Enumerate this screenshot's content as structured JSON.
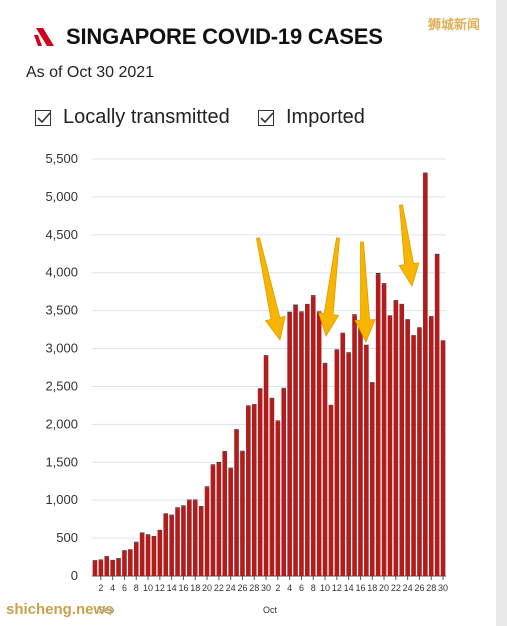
{
  "header": {
    "title": "SINGAPORE COVID-19 CASES",
    "subtitle": "As of Oct 30 2021"
  },
  "legend": [
    {
      "label": "Locally transmitted",
      "checked": true
    },
    {
      "label": "Imported",
      "checked": true
    }
  ],
  "watermarks": {
    "top": "狮城新闻",
    "bottom": "shicheng.news"
  },
  "colors": {
    "local": "#b11c1c",
    "imported": "#3a3a3a",
    "arrow": "#f7b500",
    "logo": "#d0021b"
  },
  "chart_data": {
    "type": "bar",
    "stacked": true,
    "title": "SINGAPORE COVID-19 CASES",
    "xlabel": "",
    "ylabel": "",
    "ylim": [
      0,
      5500
    ],
    "yticks": [
      0,
      500,
      1000,
      1500,
      2000,
      2500,
      3000,
      3500,
      4000,
      4500,
      5000,
      5500
    ],
    "ytick_labels": [
      "0",
      "500",
      "1,000",
      "1,500",
      "2,000",
      "2,500",
      "3,000",
      "3,500",
      "4,000",
      "4,500",
      "5,000",
      "5,500"
    ],
    "grid": true,
    "categories": [
      "Sep 1",
      "Sep 2",
      "Sep 3",
      "Sep 4",
      "Sep 5",
      "Sep 6",
      "Sep 7",
      "Sep 8",
      "Sep 9",
      "Sep 10",
      "Sep 11",
      "Sep 12",
      "Sep 13",
      "Sep 14",
      "Sep 15",
      "Sep 16",
      "Sep 17",
      "Sep 18",
      "Sep 19",
      "Sep 20",
      "Sep 21",
      "Sep 22",
      "Sep 23",
      "Sep 24",
      "Sep 25",
      "Sep 26",
      "Sep 27",
      "Sep 28",
      "Sep 29",
      "Sep 30",
      "Oct 1",
      "Oct 2",
      "Oct 3",
      "Oct 4",
      "Oct 5",
      "Oct 6",
      "Oct 7",
      "Oct 8",
      "Oct 9",
      "Oct 10",
      "Oct 11",
      "Oct 12",
      "Oct 13",
      "Oct 14",
      "Oct 15",
      "Oct 16",
      "Oct 17",
      "Oct 18",
      "Oct 19",
      "Oct 20",
      "Oct 21",
      "Oct 22",
      "Oct 23",
      "Oct 24",
      "Oct 25",
      "Oct 26",
      "Oct 27",
      "Oct 28",
      "Oct 29",
      "Oct 30"
    ],
    "x_tick_labels": [
      "2",
      "4",
      "6",
      "8",
      "10",
      "12",
      "14",
      "16",
      "18",
      "20",
      "22",
      "24",
      "26",
      "28",
      "30",
      "2",
      "4",
      "6",
      "8",
      "10",
      "12",
      "14",
      "16",
      "18",
      "20",
      "22",
      "24",
      "26",
      "28",
      "30"
    ],
    "x_group_labels": [
      "Sep",
      "Oct"
    ],
    "series": [
      {
        "name": "Locally transmitted",
        "values": [
          200,
          210,
          250,
          205,
          230,
          330,
          345,
          440,
          560,
          540,
          520,
          600,
          820,
          800,
          895,
          920,
          1000,
          1000,
          910,
          1170,
          1460,
          1490,
          1640,
          1420,
          1930,
          1640,
          2240,
          2260,
          2460,
          2900,
          2340,
          2040,
          2470,
          3470,
          3560,
          3480,
          3580,
          3690,
          3480,
          2800,
          2250,
          2980,
          3200,
          2940,
          3440,
          3350,
          3040,
          2550,
          3980,
          3850,
          3430,
          3630,
          3580,
          3380,
          3170,
          3270,
          5310,
          3420,
          4240,
          3100
        ]
      },
      {
        "name": "Imported",
        "values": [
          10,
          8,
          12,
          8,
          7,
          10,
          8,
          12,
          14,
          10,
          8,
          9,
          8,
          10,
          11,
          12,
          9,
          10,
          12,
          13,
          13,
          14,
          9,
          10,
          8,
          12,
          11,
          8,
          16,
          13,
          10,
          12,
          12,
          16,
          20,
          10,
          9,
          14,
          10,
          12,
          8,
          10,
          9,
          11,
          12,
          8,
          10,
          8,
          17,
          12,
          8,
          10,
          9,
          9,
          8,
          10,
          11,
          9,
          9,
          8
        ]
      }
    ]
  }
}
